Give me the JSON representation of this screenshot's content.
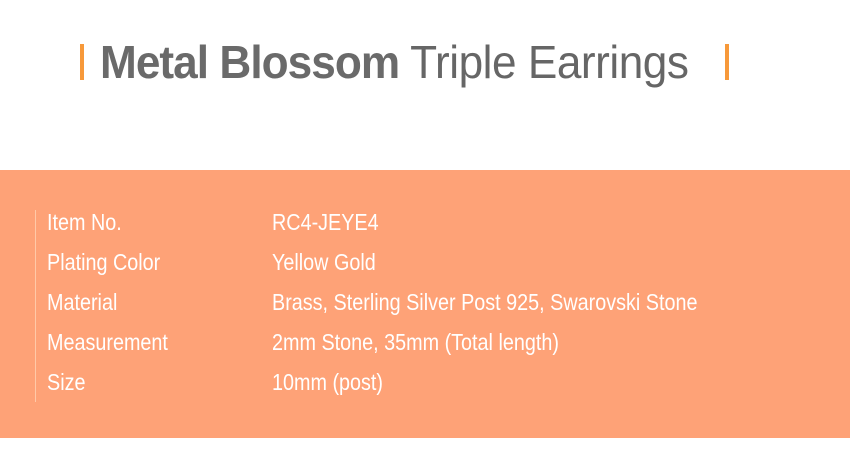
{
  "title": {
    "bold": "Metal Blossom",
    "light": "Triple Earrings",
    "accent_color": "#f7993a"
  },
  "band_color": "#fea277",
  "specs": [
    {
      "label": "Item No.",
      "value": "RC4-JEYE4"
    },
    {
      "label": "Plating Color",
      "value": "Yellow Gold"
    },
    {
      "label": "Material",
      "value": "Brass, Sterling Silver Post 925, Swarovski Stone"
    },
    {
      "label": "Measurement",
      "value": "2mm Stone, 35mm (Total length)"
    },
    {
      "label": "Size",
      "value": "10mm (post)"
    }
  ]
}
